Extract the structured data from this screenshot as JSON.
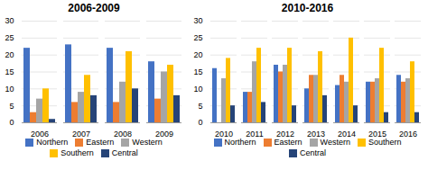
{
  "chart_data": [
    {
      "type": "bar",
      "title": "2006-2009",
      "categories": [
        "2006",
        "2007",
        "2008",
        "2009"
      ],
      "series": [
        {
          "name": "Northern",
          "color": "#4472C4",
          "values": [
            22,
            23,
            22,
            18
          ]
        },
        {
          "name": "Eastern",
          "color": "#ED7D31",
          "values": [
            3,
            6,
            6,
            7
          ]
        },
        {
          "name": "Western",
          "color": "#A5A5A5",
          "values": [
            7,
            9,
            12,
            15
          ]
        },
        {
          "name": "Southern",
          "color": "#FFC000",
          "values": [
            10,
            14,
            21,
            17
          ]
        },
        {
          "name": "Central",
          "color": "#264478",
          "values": [
            1,
            8,
            10,
            8
          ]
        }
      ],
      "ylim": [
        0,
        30
      ],
      "yticks": [
        0,
        5,
        10,
        15,
        20,
        25,
        30
      ],
      "grid": true,
      "legend": "bottom"
    },
    {
      "type": "bar",
      "title": "2010-2016",
      "categories": [
        "2010",
        "2011",
        "2012",
        "2013",
        "2014",
        "2015",
        "2016"
      ],
      "series": [
        {
          "name": "Northern",
          "color": "#4472C4",
          "values": [
            16,
            9,
            17,
            10,
            11,
            12,
            14
          ]
        },
        {
          "name": "Eastern",
          "color": "#ED7D31",
          "values": [
            0,
            9,
            15,
            14,
            14,
            12,
            12
          ]
        },
        {
          "name": "Western",
          "color": "#A5A5A5",
          "values": [
            13,
            18,
            17,
            14,
            12,
            13,
            13
          ]
        },
        {
          "name": "Southern",
          "color": "#FFC000",
          "values": [
            19,
            22,
            22,
            21,
            25,
            22,
            18
          ]
        },
        {
          "name": "Central",
          "color": "#264478",
          "values": [
            5,
            6,
            5,
            8,
            5,
            3,
            3
          ]
        }
      ],
      "ylim": [
        0,
        30
      ],
      "yticks": [
        0,
        5,
        10,
        15,
        20,
        25,
        30
      ],
      "grid": true,
      "legend": "bottom"
    }
  ]
}
